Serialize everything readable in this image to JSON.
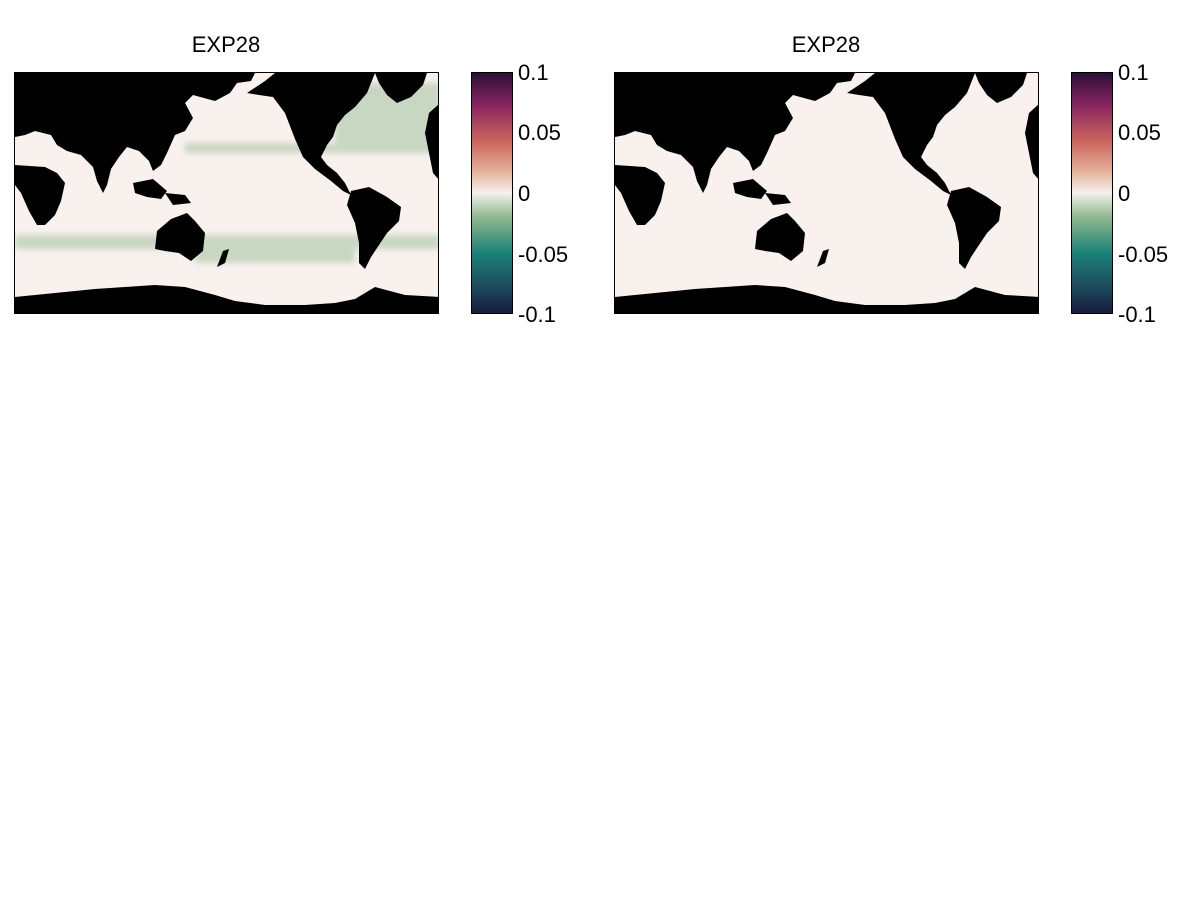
{
  "panels": [
    {
      "title": "EXP28",
      "anomaly_pattern": "green-bands"
    },
    {
      "title": "EXP28",
      "anomaly_pattern": "near-zero"
    }
  ],
  "colorbar": {
    "ticks": [
      "0.1",
      "0.05",
      "0",
      "-0.05",
      "-0.1"
    ],
    "range": [
      -0.1,
      0.1
    ],
    "colormap": [
      "#161c3e",
      "#1d4f5f",
      "#1b8176",
      "#8fb98f",
      "#f4f1ec",
      "#e3ab93",
      "#c9635c",
      "#86245f",
      "#2b0f38"
    ]
  },
  "colors": {
    "land": "#000000",
    "ocean": "#f8f1ee",
    "negative_band": "#b9cfb3"
  }
}
